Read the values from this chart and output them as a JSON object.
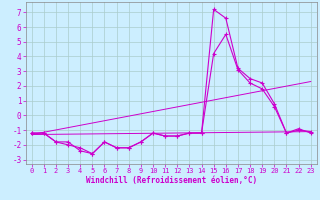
{
  "xlabel": "Windchill (Refroidissement éolien,°C)",
  "background_color": "#cceeff",
  "grid_color": "#aacccc",
  "line_color": "#cc00cc",
  "xlim": [
    -0.5,
    23.5
  ],
  "ylim": [
    -3.3,
    7.7
  ],
  "xticks": [
    0,
    1,
    2,
    3,
    4,
    5,
    6,
    7,
    8,
    9,
    10,
    11,
    12,
    13,
    14,
    15,
    16,
    17,
    18,
    19,
    20,
    21,
    22,
    23
  ],
  "yticks": [
    -3,
    -2,
    -1,
    0,
    1,
    2,
    3,
    4,
    5,
    6,
    7
  ],
  "series": {
    "line1_x": [
      0,
      1,
      2,
      3,
      4,
      5,
      6,
      7,
      8,
      9,
      10,
      11,
      12,
      13,
      14,
      15,
      16,
      17,
      18,
      19,
      20,
      21,
      22,
      23
    ],
    "line1_y": [
      -1.2,
      -1.2,
      -1.8,
      -1.8,
      -2.4,
      -2.6,
      -1.8,
      -2.2,
      -2.2,
      -1.8,
      -1.2,
      -1.4,
      -1.4,
      -1.2,
      -1.2,
      7.2,
      6.6,
      3.2,
      2.5,
      2.2,
      0.8,
      -1.2,
      -1.0,
      -1.1
    ],
    "line2_x": [
      0,
      1,
      2,
      3,
      4,
      5,
      6,
      7,
      8,
      9,
      10,
      11,
      12,
      13,
      14,
      15,
      16,
      17,
      18,
      19,
      20,
      21,
      22,
      23
    ],
    "line2_y": [
      -1.2,
      -1.2,
      -1.8,
      -2.0,
      -2.2,
      -2.6,
      -1.8,
      -2.2,
      -2.2,
      -1.8,
      -1.2,
      -1.4,
      -1.4,
      -1.2,
      -1.2,
      4.2,
      5.5,
      3.1,
      2.2,
      1.8,
      0.6,
      -1.2,
      -0.9,
      -1.2
    ],
    "line3_x": [
      0,
      23
    ],
    "line3_y": [
      -1.3,
      2.3
    ],
    "line4_x": [
      0,
      23
    ],
    "line4_y": [
      -1.3,
      -1.1
    ]
  }
}
